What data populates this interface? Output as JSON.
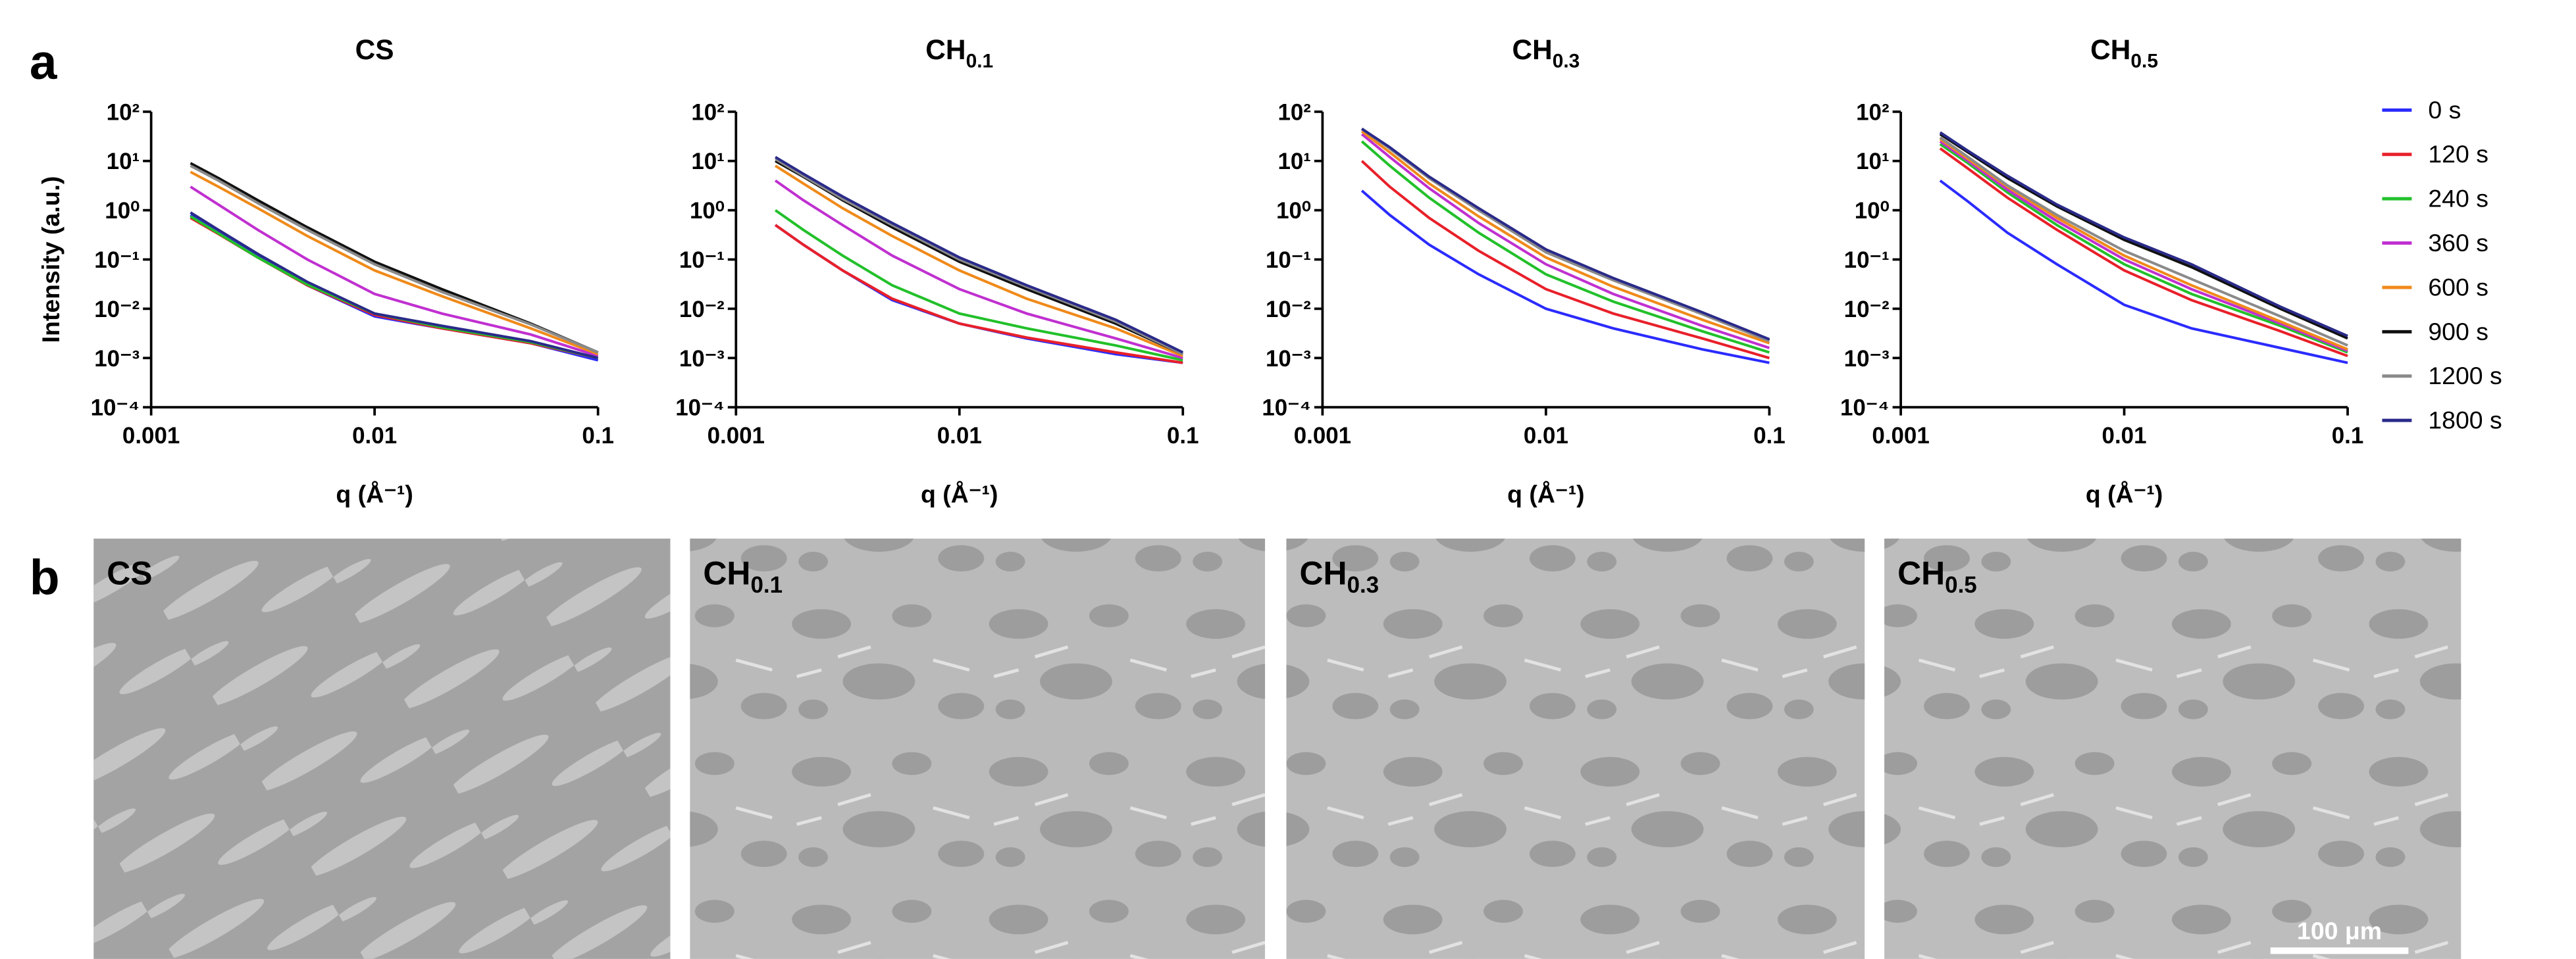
{
  "panel_labels": [
    "a",
    "b"
  ],
  "chart_data": [
    {
      "type": "line",
      "title": "CS",
      "ylabel": "Intensity (a.u.)",
      "xlabel": "q (Å⁻¹)",
      "log_x": true,
      "log_y": true,
      "x": [
        0.0015,
        0.002,
        0.003,
        0.005,
        0.01,
        0.02,
        0.05,
        0.1
      ],
      "xlim": [
        0.001,
        0.1
      ],
      "xticks": [
        0.001,
        0.01,
        0.1
      ],
      "ylim": [
        0.0001,
        100
      ],
      "yticks": [
        {
          "value": 0.0001,
          "label": "10⁻⁴"
        },
        {
          "value": 0.001,
          "label": "10⁻³"
        },
        {
          "value": 0.01,
          "label": "10⁻²"
        },
        {
          "value": 0.1,
          "label": "10⁻¹"
        },
        {
          "value": 1,
          "label": "10⁰"
        },
        {
          "value": 10,
          "label": "10¹"
        },
        {
          "value": 100,
          "label": "10²"
        }
      ],
      "series": [
        {
          "color": "#2b2bff",
          "values": [
            0.8,
            0.35,
            0.12,
            0.03,
            0.007,
            0.004,
            0.002,
            0.0009
          ]
        },
        {
          "color": "#e8202a",
          "values": [
            0.7,
            0.33,
            0.11,
            0.03,
            0.0075,
            0.004,
            0.002,
            0.001
          ]
        },
        {
          "color": "#22c02a",
          "values": [
            0.75,
            0.34,
            0.11,
            0.031,
            0.008,
            0.0042,
            0.0021,
            0.001
          ]
        },
        {
          "color": "#c030d0",
          "values": [
            3,
            1.3,
            0.4,
            0.1,
            0.02,
            0.008,
            0.003,
            0.0011
          ]
        },
        {
          "color": "#f08a1a",
          "values": [
            6,
            3,
            1.1,
            0.3,
            0.06,
            0.018,
            0.004,
            0.0012
          ]
        },
        {
          "color": "#111111",
          "values": [
            9,
            4.5,
            1.6,
            0.45,
            0.09,
            0.025,
            0.005,
            0.0013
          ]
        },
        {
          "color": "#8a8a8a",
          "values": [
            8,
            4,
            1.4,
            0.4,
            0.08,
            0.022,
            0.0048,
            0.0013
          ]
        },
        {
          "color": "#2a2a8a",
          "values": [
            0.9,
            0.4,
            0.13,
            0.035,
            0.008,
            0.0045,
            0.0022,
            0.001
          ]
        }
      ]
    },
    {
      "type": "line",
      "title": "CH",
      "title_subscript": "0.1",
      "xlabel": "q (Å⁻¹)",
      "log_x": true,
      "log_y": true,
      "x": [
        0.0015,
        0.002,
        0.003,
        0.005,
        0.01,
        0.02,
        0.05,
        0.1
      ],
      "xlim": [
        0.001,
        0.1
      ],
      "xticks": [
        0.001,
        0.01,
        0.1
      ],
      "ylim": [
        0.0001,
        100
      ],
      "yticks": [
        {
          "value": 0.0001,
          "label": "10⁻⁴"
        },
        {
          "value": 0.001,
          "label": "10⁻³"
        },
        {
          "value": 0.01,
          "label": "10⁻²"
        },
        {
          "value": 0.1,
          "label": "10⁻¹"
        },
        {
          "value": 1,
          "label": "10⁰"
        },
        {
          "value": 10,
          "label": "10¹"
        },
        {
          "value": 100,
          "label": "10²"
        }
      ],
      "series": [
        {
          "color": "#2b2bff",
          "values": [
            0.5,
            0.2,
            0.06,
            0.015,
            0.005,
            0.0025,
            0.0012,
            0.0008
          ]
        },
        {
          "color": "#e8202a",
          "values": [
            0.5,
            0.2,
            0.06,
            0.016,
            0.005,
            0.0026,
            0.0013,
            0.0008
          ]
        },
        {
          "color": "#22c02a",
          "values": [
            1,
            0.4,
            0.12,
            0.03,
            0.008,
            0.004,
            0.0018,
            0.0009
          ]
        },
        {
          "color": "#c030d0",
          "values": [
            4,
            1.6,
            0.5,
            0.12,
            0.025,
            0.008,
            0.0025,
            0.001
          ]
        },
        {
          "color": "#f08a1a",
          "values": [
            8,
            3.5,
            1.1,
            0.3,
            0.06,
            0.016,
            0.004,
            0.0011
          ]
        },
        {
          "color": "#111111",
          "values": [
            10,
            4.8,
            1.6,
            0.45,
            0.09,
            0.025,
            0.005,
            0.0012
          ]
        },
        {
          "color": "#8a8a8a",
          "values": [
            11,
            5,
            1.7,
            0.5,
            0.1,
            0.028,
            0.0055,
            0.0012
          ]
        },
        {
          "color": "#2a2a8a",
          "values": [
            12,
            5.5,
            1.9,
            0.55,
            0.11,
            0.03,
            0.006,
            0.0013
          ]
        }
      ]
    },
    {
      "type": "line",
      "title": "CH",
      "title_subscript": "0.3",
      "xlabel": "q (Å⁻¹)",
      "log_x": true,
      "log_y": true,
      "x": [
        0.0015,
        0.002,
        0.003,
        0.005,
        0.01,
        0.02,
        0.05,
        0.1
      ],
      "xlim": [
        0.001,
        0.1
      ],
      "xticks": [
        0.001,
        0.01,
        0.1
      ],
      "ylim": [
        0.0001,
        100
      ],
      "yticks": [
        {
          "value": 0.0001,
          "label": "10⁻⁴"
        },
        {
          "value": 0.001,
          "label": "10⁻³"
        },
        {
          "value": 0.01,
          "label": "10⁻²"
        },
        {
          "value": 0.1,
          "label": "10⁻¹"
        },
        {
          "value": 1,
          "label": "10⁰"
        },
        {
          "value": 10,
          "label": "10¹"
        },
        {
          "value": 100,
          "label": "10²"
        }
      ],
      "series": [
        {
          "color": "#2b2bff",
          "values": [
            2.5,
            0.8,
            0.2,
            0.05,
            0.01,
            0.004,
            0.0015,
            0.0008
          ]
        },
        {
          "color": "#e8202a",
          "values": [
            10,
            3,
            0.7,
            0.15,
            0.025,
            0.008,
            0.0025,
            0.001
          ]
        },
        {
          "color": "#22c02a",
          "values": [
            25,
            8,
            1.8,
            0.35,
            0.05,
            0.014,
            0.0035,
            0.0013
          ]
        },
        {
          "color": "#c030d0",
          "values": [
            35,
            12,
            2.8,
            0.55,
            0.08,
            0.02,
            0.0045,
            0.0016
          ]
        },
        {
          "color": "#f08a1a",
          "values": [
            40,
            15,
            3.5,
            0.75,
            0.11,
            0.028,
            0.006,
            0.002
          ]
        },
        {
          "color": "#111111",
          "values": [
            45,
            18,
            4.5,
            1,
            0.15,
            0.04,
            0.008,
            0.0023
          ]
        },
        {
          "color": "#8a8a8a",
          "values": [
            45,
            18,
            4.5,
            1,
            0.14,
            0.038,
            0.0078,
            0.0022
          ]
        },
        {
          "color": "#2a2a8a",
          "values": [
            45,
            19,
            4.8,
            1.1,
            0.16,
            0.042,
            0.0085,
            0.0024
          ]
        }
      ]
    },
    {
      "type": "line",
      "title": "CH",
      "title_subscript": "0.5",
      "xlabel": "q (Å⁻¹)",
      "log_x": true,
      "log_y": true,
      "legend": "right",
      "x": [
        0.0015,
        0.002,
        0.003,
        0.005,
        0.01,
        0.02,
        0.05,
        0.1
      ],
      "xlim": [
        0.001,
        0.1
      ],
      "xticks": [
        0.001,
        0.01,
        0.1
      ],
      "ylim": [
        0.0001,
        100
      ],
      "yticks": [
        {
          "value": 0.0001,
          "label": "10⁻⁴"
        },
        {
          "value": 0.001,
          "label": "10⁻³"
        },
        {
          "value": 0.01,
          "label": "10⁻²"
        },
        {
          "value": 0.1,
          "label": "10⁻¹"
        },
        {
          "value": 1,
          "label": "10⁰"
        },
        {
          "value": 10,
          "label": "10¹"
        },
        {
          "value": 100,
          "label": "10²"
        }
      ],
      "series": [
        {
          "name": "0 s",
          "color": "#2b2bff",
          "values": [
            4,
            1.5,
            0.35,
            0.08,
            0.012,
            0.004,
            0.0016,
            0.0008
          ]
        },
        {
          "name": "120 s",
          "color": "#e8202a",
          "values": [
            18,
            7,
            1.8,
            0.4,
            0.06,
            0.015,
            0.0035,
            0.0011
          ]
        },
        {
          "name": "240 s",
          "color": "#22c02a",
          "values": [
            22,
            9,
            2.3,
            0.5,
            0.08,
            0.02,
            0.0045,
            0.0013
          ]
        },
        {
          "name": "360 s",
          "color": "#c030d0",
          "values": [
            25,
            10,
            2.6,
            0.6,
            0.1,
            0.025,
            0.005,
            0.0014
          ]
        },
        {
          "name": "600 s",
          "color": "#f08a1a",
          "values": [
            28,
            11,
            3,
            0.7,
            0.12,
            0.03,
            0.0055,
            0.0015
          ]
        },
        {
          "name": "900 s",
          "color": "#111111",
          "values": [
            35,
            15,
            4.5,
            1.2,
            0.25,
            0.07,
            0.01,
            0.0025
          ]
        },
        {
          "name": "1200 s",
          "color": "#8a8a8a",
          "values": [
            30,
            12,
            3.2,
            0.8,
            0.15,
            0.04,
            0.007,
            0.0018
          ]
        },
        {
          "name": "1800 s",
          "color": "#2a2a8a",
          "values": [
            38,
            16,
            5,
            1.3,
            0.28,
            0.08,
            0.011,
            0.0028
          ]
        }
      ]
    }
  ],
  "images": [
    {
      "label": "CS"
    },
    {
      "label": "CH",
      "label_subscript": "0.1"
    },
    {
      "label": "CH",
      "label_subscript": "0.3"
    },
    {
      "label": "CH",
      "label_subscript": "0.5"
    }
  ],
  "scale_bar": "100 μm"
}
